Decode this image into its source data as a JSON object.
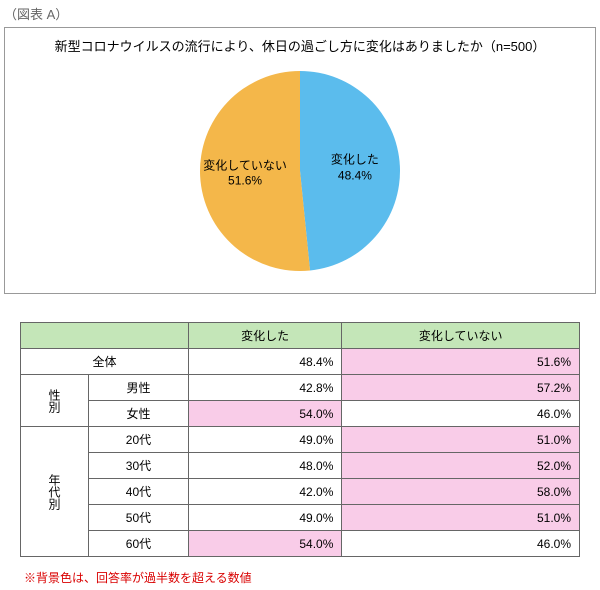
{
  "figure_label": "（図表 A）",
  "chart": {
    "type": "pie",
    "title": "新型コロナウイルスの流行により、休日の過ごし方に変化はありましたか（n=500）",
    "slices": [
      {
        "label": "変化した",
        "value": 48.4,
        "pct_text": "48.4%",
        "color": "#5bbced"
      },
      {
        "label": "変化していない",
        "value": 51.6,
        "pct_text": "51.6%",
        "color": "#f4b74a"
      }
    ],
    "label_font_size": 12,
    "bg_color": "#ffffff",
    "border_color": "#999999"
  },
  "table": {
    "header_bg": "#c4e6b8",
    "highlight_bg": "#f9cce8",
    "border_color": "#666666",
    "columns": [
      "",
      "変化した",
      "変化していない"
    ],
    "groups": [
      {
        "group_label": null,
        "rows": [
          {
            "label": "全体",
            "changed": "48.4%",
            "unchanged": "51.6%",
            "hl_changed": false,
            "hl_unchanged": true
          }
        ]
      },
      {
        "group_label": "性別",
        "rows": [
          {
            "label": "男性",
            "changed": "42.8%",
            "unchanged": "57.2%",
            "hl_changed": false,
            "hl_unchanged": true
          },
          {
            "label": "女性",
            "changed": "54.0%",
            "unchanged": "46.0%",
            "hl_changed": true,
            "hl_unchanged": false
          }
        ]
      },
      {
        "group_label": "年代別",
        "rows": [
          {
            "label": "20代",
            "changed": "49.0%",
            "unchanged": "51.0%",
            "hl_changed": false,
            "hl_unchanged": true
          },
          {
            "label": "30代",
            "changed": "48.0%",
            "unchanged": "52.0%",
            "hl_changed": false,
            "hl_unchanged": true
          },
          {
            "label": "40代",
            "changed": "42.0%",
            "unchanged": "58.0%",
            "hl_changed": false,
            "hl_unchanged": true
          },
          {
            "label": "50代",
            "changed": "49.0%",
            "unchanged": "51.0%",
            "hl_changed": false,
            "hl_unchanged": true
          },
          {
            "label": "60代",
            "changed": "54.0%",
            "unchanged": "46.0%",
            "hl_changed": true,
            "hl_unchanged": false
          }
        ]
      }
    ]
  },
  "footnote": "※背景色は、回答率が過半数を超える数値"
}
